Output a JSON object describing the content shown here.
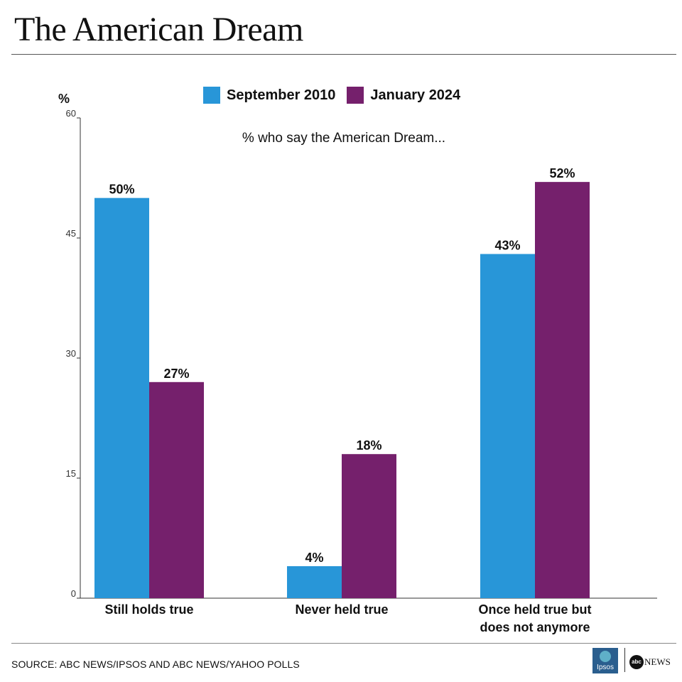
{
  "title": "The American Dream",
  "source": "SOURCE: ABC NEWS/IPSOS AND ABC NEWS/YAHOO POLLS",
  "logos": {
    "ipsos": "Ipsos",
    "abc": "abc",
    "news": "NEWS"
  },
  "colors": {
    "september_2010": "#2896d8",
    "january_2024": "#75206c"
  },
  "chart_data": {
    "type": "bar",
    "subtitle": "% who say the American Dream...",
    "ylabel": "%",
    "ylim": [
      0,
      60
    ],
    "yticks": [
      0,
      15,
      30,
      45,
      60
    ],
    "legend": "top",
    "categories": [
      [
        "Still holds true"
      ],
      [
        "Never held true"
      ],
      [
        "Once held true but",
        "does not anymore"
      ]
    ],
    "series": [
      {
        "name": "September 2010",
        "values": [
          50,
          4,
          43
        ],
        "labels": [
          "50%",
          "4%",
          "43%"
        ]
      },
      {
        "name": "January 2024",
        "values": [
          27,
          18,
          52
        ],
        "labels": [
          "27%",
          "18%",
          "52%"
        ]
      }
    ]
  }
}
